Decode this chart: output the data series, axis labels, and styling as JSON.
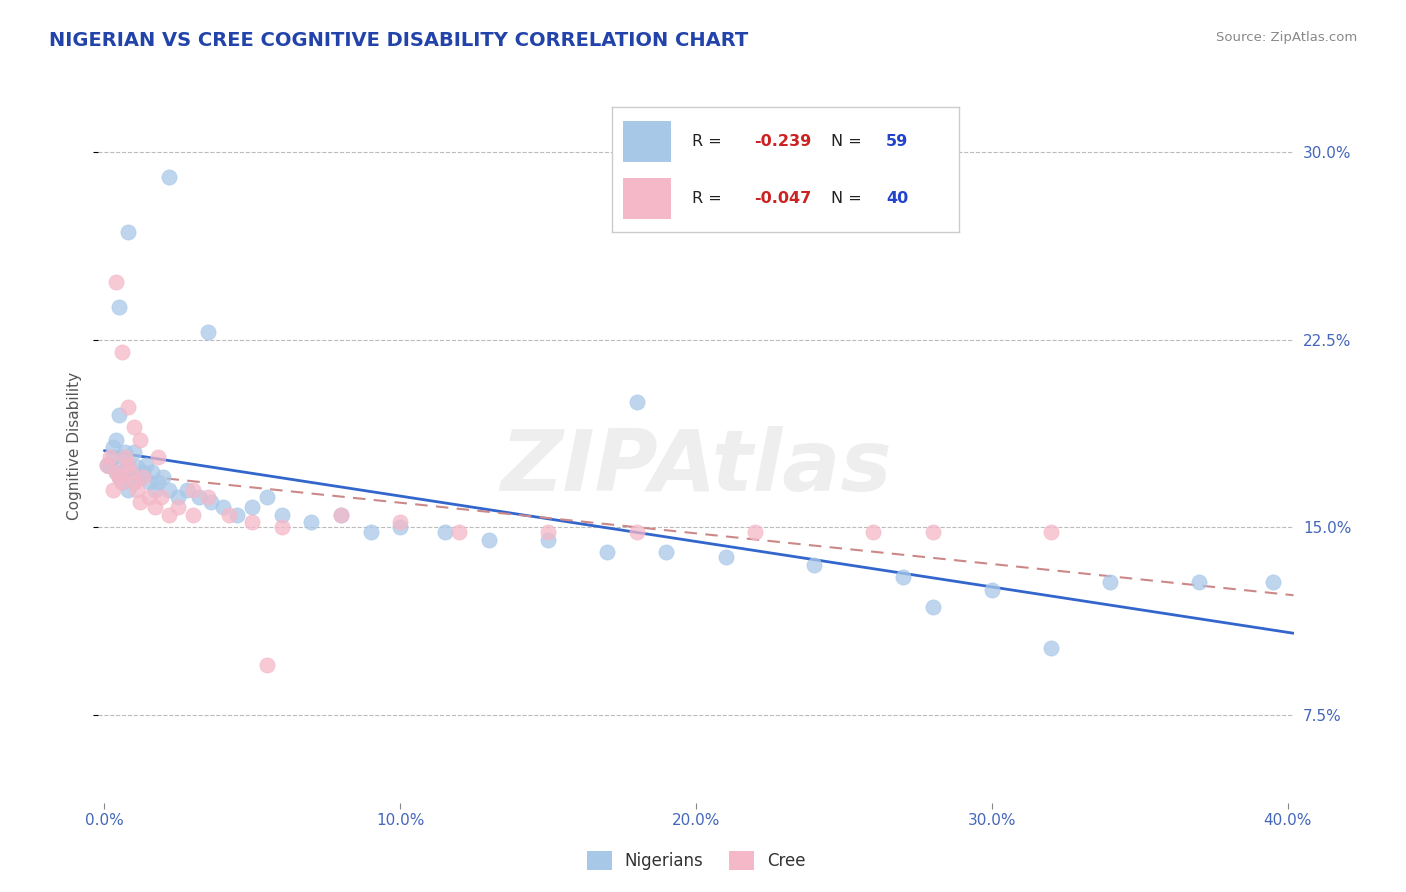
{
  "title": "NIGERIAN VS CREE COGNITIVE DISABILITY CORRELATION CHART",
  "source": "Source: ZipAtlas.com",
  "ylabel": "Cognitive Disability",
  "xlim": [
    -0.002,
    0.402
  ],
  "ylim": [
    0.04,
    0.325
  ],
  "yticks": [
    0.075,
    0.15,
    0.225,
    0.3
  ],
  "ytick_labels": [
    "7.5%",
    "15.0%",
    "22.5%",
    "30.0%"
  ],
  "xticks": [
    0.0,
    0.1,
    0.2,
    0.3,
    0.4
  ],
  "xtick_labels": [
    "0.0%",
    "10.0%",
    "20.0%",
    "30.0%",
    "40.0%"
  ],
  "nigerian_R": -0.239,
  "nigerian_N": 59,
  "cree_R": -0.047,
  "cree_N": 40,
  "nigerian_color": "#a8c8e8",
  "cree_color": "#f4b8c8",
  "nigerian_line_color": "#3366cc",
  "cree_line_color": "#cc8888",
  "watermark": "ZIPAtlas",
  "nigerian_x": [
    0.001,
    0.002,
    0.003,
    0.003,
    0.004,
    0.004,
    0.005,
    0.005,
    0.006,
    0.006,
    0.007,
    0.007,
    0.008,
    0.008,
    0.009,
    0.01,
    0.01,
    0.011,
    0.012,
    0.013,
    0.014,
    0.015,
    0.016,
    0.017,
    0.018,
    0.02,
    0.022,
    0.025,
    0.028,
    0.032,
    0.036,
    0.04,
    0.045,
    0.05,
    0.055,
    0.06,
    0.07,
    0.08,
    0.09,
    0.1,
    0.115,
    0.13,
    0.15,
    0.17,
    0.19,
    0.21,
    0.24,
    0.27,
    0.3,
    0.34,
    0.37,
    0.395,
    0.022,
    0.008,
    0.005,
    0.035,
    0.18,
    0.28,
    0.32
  ],
  "nigerian_y": [
    0.175,
    0.175,
    0.178,
    0.182,
    0.172,
    0.185,
    0.17,
    0.195,
    0.168,
    0.178,
    0.173,
    0.18,
    0.165,
    0.175,
    0.172,
    0.168,
    0.18,
    0.174,
    0.17,
    0.172,
    0.175,
    0.168,
    0.172,
    0.165,
    0.168,
    0.17,
    0.165,
    0.162,
    0.165,
    0.162,
    0.16,
    0.158,
    0.155,
    0.158,
    0.162,
    0.155,
    0.152,
    0.155,
    0.148,
    0.15,
    0.148,
    0.145,
    0.145,
    0.14,
    0.14,
    0.138,
    0.135,
    0.13,
    0.125,
    0.128,
    0.128,
    0.128,
    0.29,
    0.268,
    0.238,
    0.228,
    0.2,
    0.118,
    0.102
  ],
  "cree_x": [
    0.001,
    0.002,
    0.003,
    0.004,
    0.005,
    0.006,
    0.007,
    0.008,
    0.009,
    0.01,
    0.011,
    0.012,
    0.013,
    0.015,
    0.017,
    0.019,
    0.022,
    0.025,
    0.03,
    0.035,
    0.042,
    0.05,
    0.06,
    0.08,
    0.1,
    0.12,
    0.15,
    0.18,
    0.22,
    0.26,
    0.004,
    0.006,
    0.008,
    0.01,
    0.012,
    0.018,
    0.03,
    0.055,
    0.28,
    0.32
  ],
  "cree_y": [
    0.175,
    0.178,
    0.165,
    0.172,
    0.17,
    0.168,
    0.178,
    0.175,
    0.172,
    0.168,
    0.165,
    0.16,
    0.17,
    0.162,
    0.158,
    0.162,
    0.155,
    0.158,
    0.155,
    0.162,
    0.155,
    0.152,
    0.15,
    0.155,
    0.152,
    0.148,
    0.148,
    0.148,
    0.148,
    0.148,
    0.248,
    0.22,
    0.198,
    0.19,
    0.185,
    0.178,
    0.165,
    0.095,
    0.148,
    0.148
  ]
}
